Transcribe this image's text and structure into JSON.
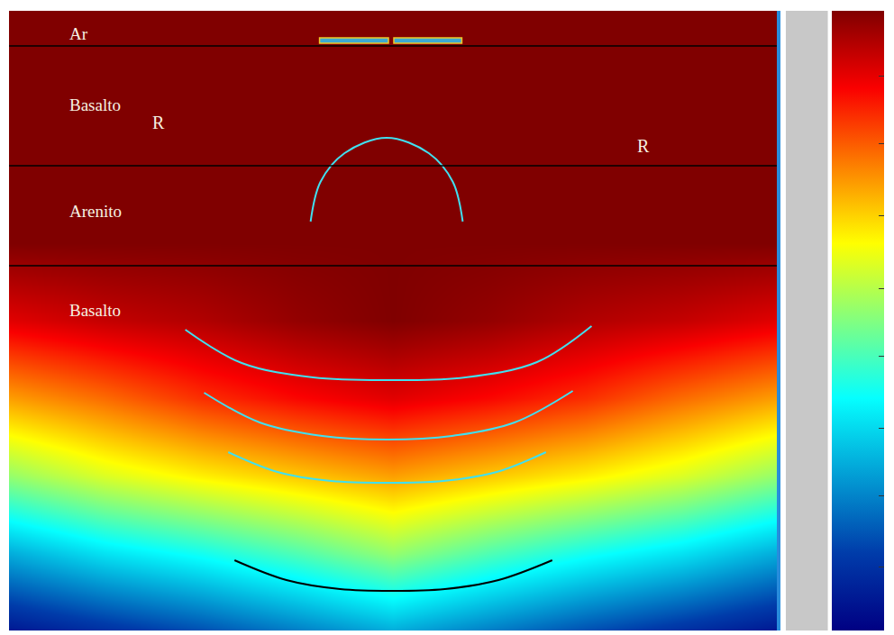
{
  "chart_data": {
    "type": "heatmap",
    "xlim": [
      0,
      858
    ],
    "ylim": [
      0,
      688
    ],
    "tick_labels": false,
    "x": [
      0,
      107,
      215,
      322,
      429,
      536,
      644,
      751,
      858
    ],
    "y": [
      0,
      86,
      172,
      258,
      344,
      430,
      516,
      602,
      688
    ],
    "z": [
      [
        1.0,
        1.0,
        1.0,
        1.0,
        1.0,
        1.0,
        1.0,
        1.0,
        1.0
      ],
      [
        1.0,
        1.0,
        1.0,
        1.0,
        1.0,
        1.0,
        1.0,
        1.0,
        1.0
      ],
      [
        1.0,
        1.0,
        1.0,
        1.0,
        1.0,
        1.0,
        1.0,
        1.0,
        1.0
      ],
      [
        1.0,
        1.0,
        1.0,
        1.0,
        1.0,
        1.0,
        1.0,
        1.0,
        1.0
      ],
      [
        0.9,
        0.93,
        0.95,
        0.98,
        1.0,
        0.98,
        0.95,
        0.93,
        0.9
      ],
      [
        0.72,
        0.77,
        0.83,
        0.87,
        0.9,
        0.87,
        0.83,
        0.77,
        0.72
      ],
      [
        0.52,
        0.59,
        0.64,
        0.68,
        0.72,
        0.68,
        0.64,
        0.59,
        0.52
      ],
      [
        0.27,
        0.34,
        0.39,
        0.45,
        0.52,
        0.45,
        0.39,
        0.34,
        0.27
      ],
      [
        0.05,
        0.1,
        0.15,
        0.21,
        0.27,
        0.21,
        0.15,
        0.1,
        0.05
      ]
    ],
    "colorbar": {
      "range": [
        0,
        1
      ],
      "ticks": [
        0.102,
        0.218,
        0.327,
        0.443,
        0.552,
        0.669,
        0.785,
        0.894
      ]
    },
    "layers": [
      {
        "name": "Ar",
        "top": 0,
        "bottom": 39,
        "label_x": 65,
        "label_y": 25
      },
      {
        "name": "Basalto",
        "top": 39,
        "bottom": 172,
        "label_x": 65,
        "label_y": 104
      },
      {
        "name": "Arenito",
        "top": 172,
        "bottom": 283,
        "label_x": 65,
        "label_y": 222
      },
      {
        "name": "Basalto",
        "top": 283,
        "bottom": 688,
        "label_x": 65,
        "label_y": 332
      }
    ],
    "annotations": [
      {
        "text": "R",
        "x": 158,
        "y": 124
      },
      {
        "text": "R",
        "x": 700,
        "y": 150
      }
    ],
    "sources": [
      {
        "x": [
          347,
          424
        ],
        "y": 33
      },
      {
        "x": [
          430,
          506
        ],
        "y": 33
      }
    ],
    "wavefronts": [
      {
        "color": "#40e0f0",
        "x": [
          337,
          348,
          375,
          422,
          469,
          496,
          507
        ],
        "y": [
          234,
          190,
          158,
          141,
          158,
          190,
          234
        ]
      },
      {
        "color": "#40e0f0",
        "x": [
          197,
          260,
          340,
          425,
          510,
          590,
          651
        ],
        "y": [
          354,
          391,
          407,
          410,
          407,
          390,
          350
        ]
      },
      {
        "color": "#40e0f0",
        "x": [
          218,
          280,
          350,
          423,
          495,
          565,
          630
        ],
        "y": [
          424,
          457,
          472,
          476,
          472,
          457,
          422
        ]
      },
      {
        "color": "#40e0f0",
        "x": [
          245,
          300,
          360,
          422,
          485,
          545,
          600
        ],
        "y": [
          490,
          512,
          522,
          524,
          522,
          512,
          490
        ]
      },
      {
        "color": "#000000",
        "x": [
          252,
          310,
          370,
          427,
          487,
          547,
          607
        ],
        "y": [
          610,
          632,
          642,
          644,
          642,
          632,
          610
        ]
      }
    ]
  }
}
